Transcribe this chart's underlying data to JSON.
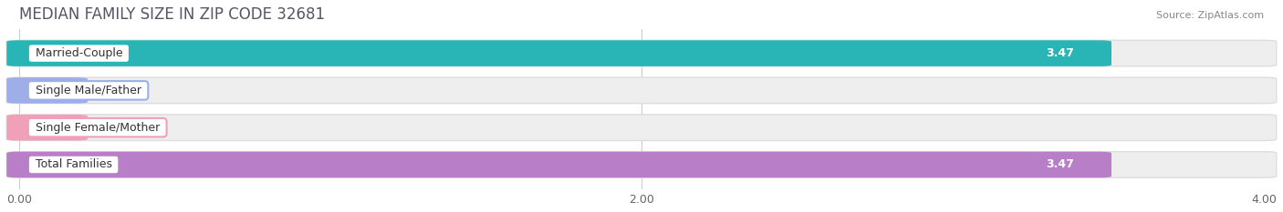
{
  "title": "MEDIAN FAMILY SIZE IN ZIP CODE 32681",
  "source": "Source: ZipAtlas.com",
  "categories": [
    "Married-Couple",
    "Single Male/Father",
    "Single Female/Mother",
    "Total Families"
  ],
  "values": [
    3.47,
    0.0,
    0.0,
    3.47
  ],
  "bar_colors": [
    "#29b5b5",
    "#9daee8",
    "#f0a0b8",
    "#b87ec8"
  ],
  "xlim_max": 4.0,
  "xticks": [
    0.0,
    2.0,
    4.0
  ],
  "xtick_labels": [
    "0.00",
    "2.00",
    "4.00"
  ],
  "background_color": "#ffffff",
  "bar_bg_color": "#eeeeee",
  "bar_bg_edge_color": "#dddddd",
  "title_fontsize": 12,
  "source_fontsize": 8,
  "bar_height": 0.62,
  "value_fontsize": 9,
  "cat_fontsize": 9
}
